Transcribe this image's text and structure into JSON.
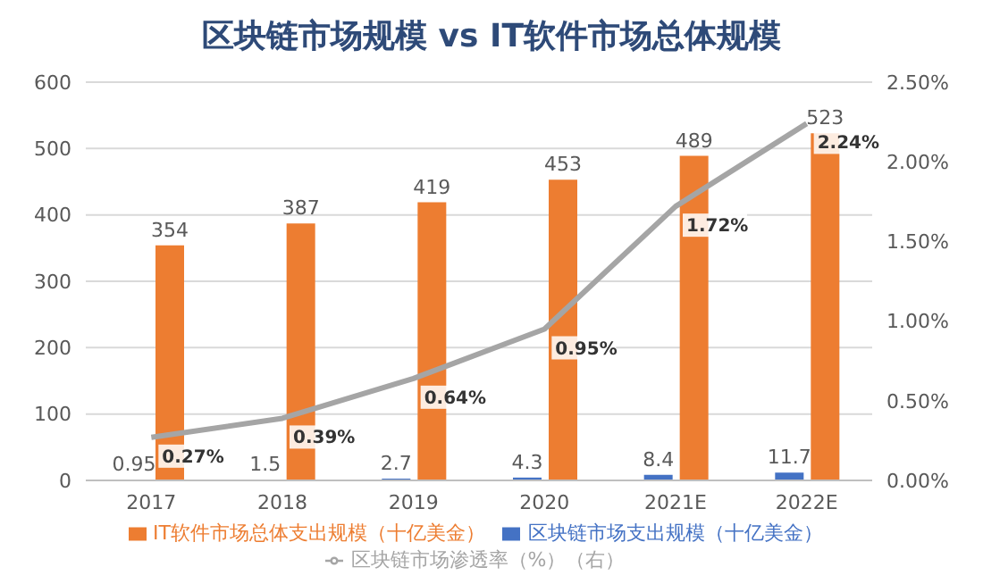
{
  "chart_data": {
    "type": "bar",
    "title": "区块链市场规模 vs IT软件市场总体规模",
    "categories": [
      "2017",
      "2018",
      "2019",
      "2020",
      "2021E",
      "2022E"
    ],
    "series": [
      {
        "name": "区块链市场支出规模（十亿美金）",
        "color": "#4472c4",
        "values": [
          0.95,
          1.5,
          2.7,
          4.3,
          8.4,
          11.7
        ],
        "value_labels": [
          "0.95",
          "1.5",
          "2.7",
          "4.3",
          "8.4",
          "11.7"
        ]
      },
      {
        "name": "IT软件市场总体支出规模（十亿美金）",
        "color": "#ed7d31",
        "values": [
          354,
          387,
          419,
          453,
          489,
          523
        ],
        "value_labels": [
          "354",
          "387",
          "419",
          "453",
          "489",
          "523"
        ]
      },
      {
        "name": "区块链市场渗透率（%）（右）",
        "type": "line",
        "axis": "y2",
        "color": "#a5a5a5",
        "values": [
          0.27,
          0.39,
          0.64,
          0.95,
          1.72,
          2.24
        ],
        "value_labels": [
          "0.27%",
          "0.39%",
          "0.64%",
          "0.95%",
          "1.72%",
          "2.24%"
        ]
      }
    ],
    "ylim": [
      0,
      600
    ],
    "yticks": [
      0,
      100,
      200,
      300,
      400,
      500,
      600
    ],
    "y2lim": [
      0,
      2.5
    ],
    "y2ticks": [
      {
        "value": 0,
        "label": "0.00%"
      },
      {
        "value": 0.5,
        "label": "0.50%"
      },
      {
        "value": 1,
        "label": "1.00%"
      },
      {
        "value": 1.5,
        "label": "1.50%"
      },
      {
        "value": 2,
        "label": "2.00%"
      },
      {
        "value": 2.5,
        "label": "2.50%"
      }
    ],
    "grid": "y",
    "legend": "bottom",
    "marker": "none"
  }
}
